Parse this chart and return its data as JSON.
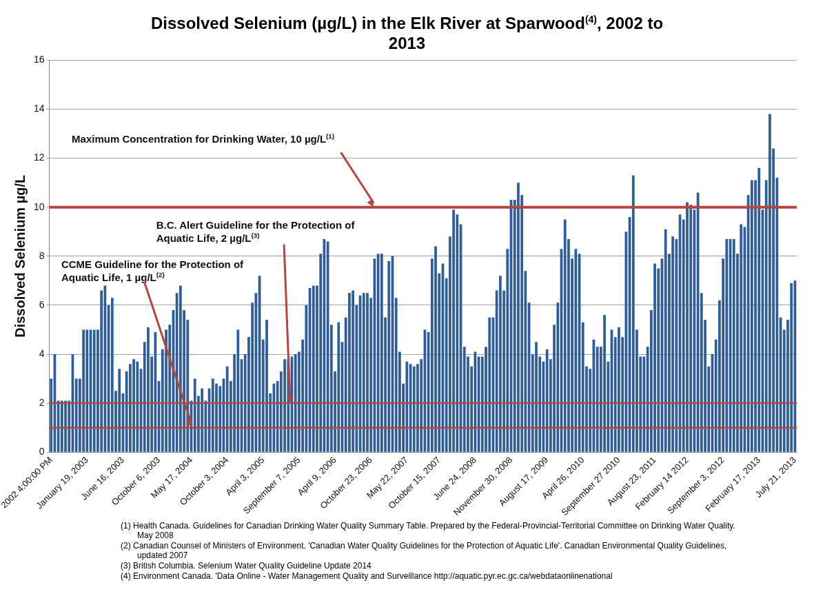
{
  "chart_data": {
    "type": "bar",
    "title": "Dissolved Selenium (µg/L) in the Elk River at Sparwood$^{(4)}$, 2002 to 2013",
    "ylabel": "Dissolved Selenium µg/L",
    "categories": [
      "2002 4:00:00 PM",
      null,
      null,
      null,
      null,
      null,
      null,
      null,
      null,
      null,
      "January 19, 2003",
      null,
      null,
      null,
      null,
      null,
      null,
      null,
      null,
      null,
      "June 16, 2003",
      null,
      null,
      null,
      null,
      null,
      null,
      null,
      null,
      null,
      "October 6, 2003",
      null,
      null,
      null,
      null,
      null,
      null,
      null,
      null,
      "May 17, 2004",
      null,
      null,
      null,
      null,
      null,
      null,
      null,
      null,
      null,
      "October 3, 2004",
      null,
      null,
      null,
      null,
      null,
      null,
      null,
      null,
      null,
      "April 3, 2005",
      null,
      null,
      null,
      null,
      null,
      null,
      null,
      null,
      null,
      "September 7, 2005",
      null,
      null,
      null,
      null,
      null,
      null,
      null,
      null,
      null,
      "April 9, 2006",
      null,
      null,
      null,
      null,
      null,
      null,
      null,
      null,
      null,
      "October 23, 2006",
      null,
      null,
      null,
      null,
      null,
      null,
      null,
      null,
      null,
      "May 22, 2007",
      null,
      null,
      null,
      null,
      null,
      null,
      null,
      null,
      "October 15, 2007",
      null,
      null,
      null,
      null,
      null,
      null,
      null,
      null,
      null,
      "June 24, 2008",
      null,
      null,
      null,
      null,
      null,
      null,
      null,
      null,
      null,
      "November 30, 2008",
      null,
      null,
      null,
      null,
      null,
      null,
      null,
      null,
      null,
      "August 17, 2009",
      null,
      null,
      null,
      null,
      null,
      null,
      null,
      null,
      null,
      "April 26, 2010",
      null,
      null,
      null,
      null,
      null,
      null,
      null,
      null,
      null,
      "September 27 2010",
      null,
      null,
      null,
      null,
      null,
      null,
      null,
      null,
      null,
      "August 23, 2011",
      null,
      null,
      null,
      null,
      null,
      null,
      null,
      null,
      "February 14 2012",
      null,
      null,
      null,
      null,
      null,
      null,
      null,
      null,
      null,
      "September 3, 2012",
      null,
      null,
      null,
      null,
      null,
      null,
      null,
      null,
      null,
      "February 17, 2013",
      null,
      null,
      null,
      null,
      null,
      null,
      null,
      null,
      null,
      "July 21, 2013"
    ],
    "values": [
      3.0,
      4.0,
      2.1,
      2.1,
      2.1,
      2.1,
      4.0,
      3.0,
      3.0,
      5.0,
      5.0,
      5.0,
      5.0,
      5.0,
      6.6,
      6.8,
      6.0,
      6.3,
      2.5,
      3.4,
      2.4,
      3.3,
      3.6,
      3.8,
      3.7,
      3.4,
      4.5,
      5.1,
      3.9,
      4.9,
      2.9,
      4.2,
      5.0,
      5.2,
      5.8,
      6.5,
      6.8,
      5.8,
      5.4,
      2.1,
      3.0,
      2.3,
      2.6,
      2.1,
      2.6,
      3.0,
      2.8,
      2.7,
      3.0,
      3.5,
      2.9,
      4.0,
      5.0,
      3.8,
      4.0,
      4.7,
      6.1,
      6.5,
      7.2,
      4.6,
      5.4,
      2.4,
      2.8,
      2.9,
      3.3,
      3.8,
      3.8,
      3.9,
      4.0,
      4.1,
      4.6,
      6.0,
      6.7,
      6.8,
      6.8,
      8.1,
      8.7,
      8.6,
      5.2,
      3.3,
      5.3,
      4.5,
      5.5,
      6.5,
      6.6,
      6.0,
      6.4,
      6.5,
      6.5,
      6.3,
      7.9,
      8.1,
      8.1,
      5.5,
      7.8,
      8.0,
      6.3,
      4.1,
      2.8,
      3.7,
      3.6,
      3.5,
      3.6,
      3.8,
      5.0,
      4.9,
      7.9,
      8.4,
      7.3,
      7.7,
      7.1,
      8.8,
      9.9,
      9.7,
      9.3,
      4.3,
      3.9,
      3.5,
      4.1,
      3.9,
      3.9,
      4.3,
      5.5,
      5.5,
      6.6,
      7.2,
      6.6,
      8.3,
      10.3,
      10.3,
      11.0,
      10.5,
      7.4,
      6.1,
      4.0,
      4.5,
      3.9,
      3.7,
      4.2,
      3.8,
      5.2,
      6.1,
      8.3,
      9.5,
      8.7,
      7.9,
      8.3,
      8.1,
      5.3,
      3.5,
      3.4,
      4.6,
      4.3,
      4.3,
      5.6,
      3.7,
      5.0,
      4.7,
      5.1,
      4.7,
      9.0,
      9.6,
      11.3,
      5.0,
      3.9,
      3.9,
      4.3,
      5.8,
      7.7,
      7.5,
      7.9,
      9.1,
      8.1,
      8.8,
      8.7,
      9.7,
      9.5,
      10.2,
      10.1,
      9.9,
      10.6,
      6.5,
      5.4,
      3.5,
      4.0,
      4.6,
      6.2,
      7.9,
      8.7,
      8.7,
      8.7,
      8.1,
      9.3,
      9.2,
      10.5,
      11.1,
      11.1,
      11.6,
      9.9,
      11.1,
      13.8,
      12.4,
      11.2,
      5.5,
      5.0,
      5.4,
      6.9,
      7.0
    ],
    "color": "#2f5d9a",
    "ylim": [
      0,
      16
    ],
    "yticks": [
      0,
      2,
      4,
      6,
      8,
      10,
      12,
      14,
      16
    ],
    "grid": "y",
    "ref_lines": [
      {
        "axis": "y",
        "value": 10,
        "label": "Maximum Concentration for Drinking Water, 10 µg/L$^{(1)}$",
        "color": "#b5453f"
      },
      {
        "axis": "y",
        "value": 2,
        "label": "B.C. Alert Guideline for the Protection of Aquatic Life, 2 µg/L$^{(3)}$",
        "color": "#b5453f"
      },
      {
        "axis": "y",
        "value": 1,
        "label": "CCME Guideline for the Protection of Aquatic Life, 1 µg/L$^{(2)}$",
        "color": "#b5453f"
      }
    ],
    "annotations": [
      "(1) Health Canada. Guidelines for Canadian Drinking Water Quality Summary Table. Prepared by the Federal-Provincial-Territorial Committee on Drinking Water Quality. May 2008",
      "(2) Canadian Counsel of Ministers of Environment. 'Canadian Water Quality Guidelines for the Protection of Aquatic Life'. Canadian Environmental Quality Guidelines, updated 2007",
      "(3) British Columbia. Selenium Water Quality Guideline Update 2014",
      "(4) Environment Canada. 'Data Online - Water Management Quality and Surveillance http://aquatic.pyr.ec.gc.ca/webdataonlinenational"
    ]
  }
}
